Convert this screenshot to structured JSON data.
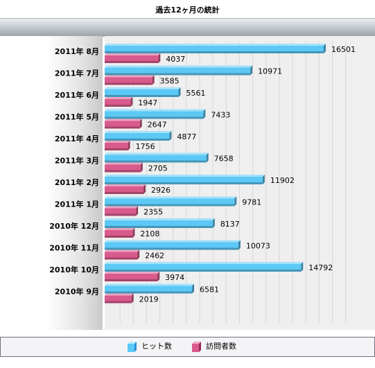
{
  "chart_data": {
    "type": "bar",
    "orientation": "horizontal",
    "title": "過去12ヶ月の統計",
    "categories": [
      "2011年  8月",
      "2011年  7月",
      "2011年  6月",
      "2011年  5月",
      "2011年  4月",
      "2011年  3月",
      "2011年  2月",
      "2011年  1月",
      "2010年  12月",
      "2010年  11月",
      "2010年  10月",
      "2010年  9月"
    ],
    "series": [
      {
        "name": "ヒット数",
        "color": "#5cc8f5",
        "values": [
          16501,
          10971,
          5561,
          7433,
          4877,
          7658,
          11902,
          9781,
          8137,
          10073,
          14792,
          6581
        ]
      },
      {
        "name": "訪問者数",
        "color": "#d95a8c",
        "values": [
          4037,
          3585,
          1947,
          2647,
          1756,
          2705,
          2926,
          2355,
          2108,
          2462,
          3974,
          2019
        ]
      }
    ],
    "xlim": [
      0,
      18000
    ],
    "grid": true,
    "legend_position": "bottom"
  }
}
